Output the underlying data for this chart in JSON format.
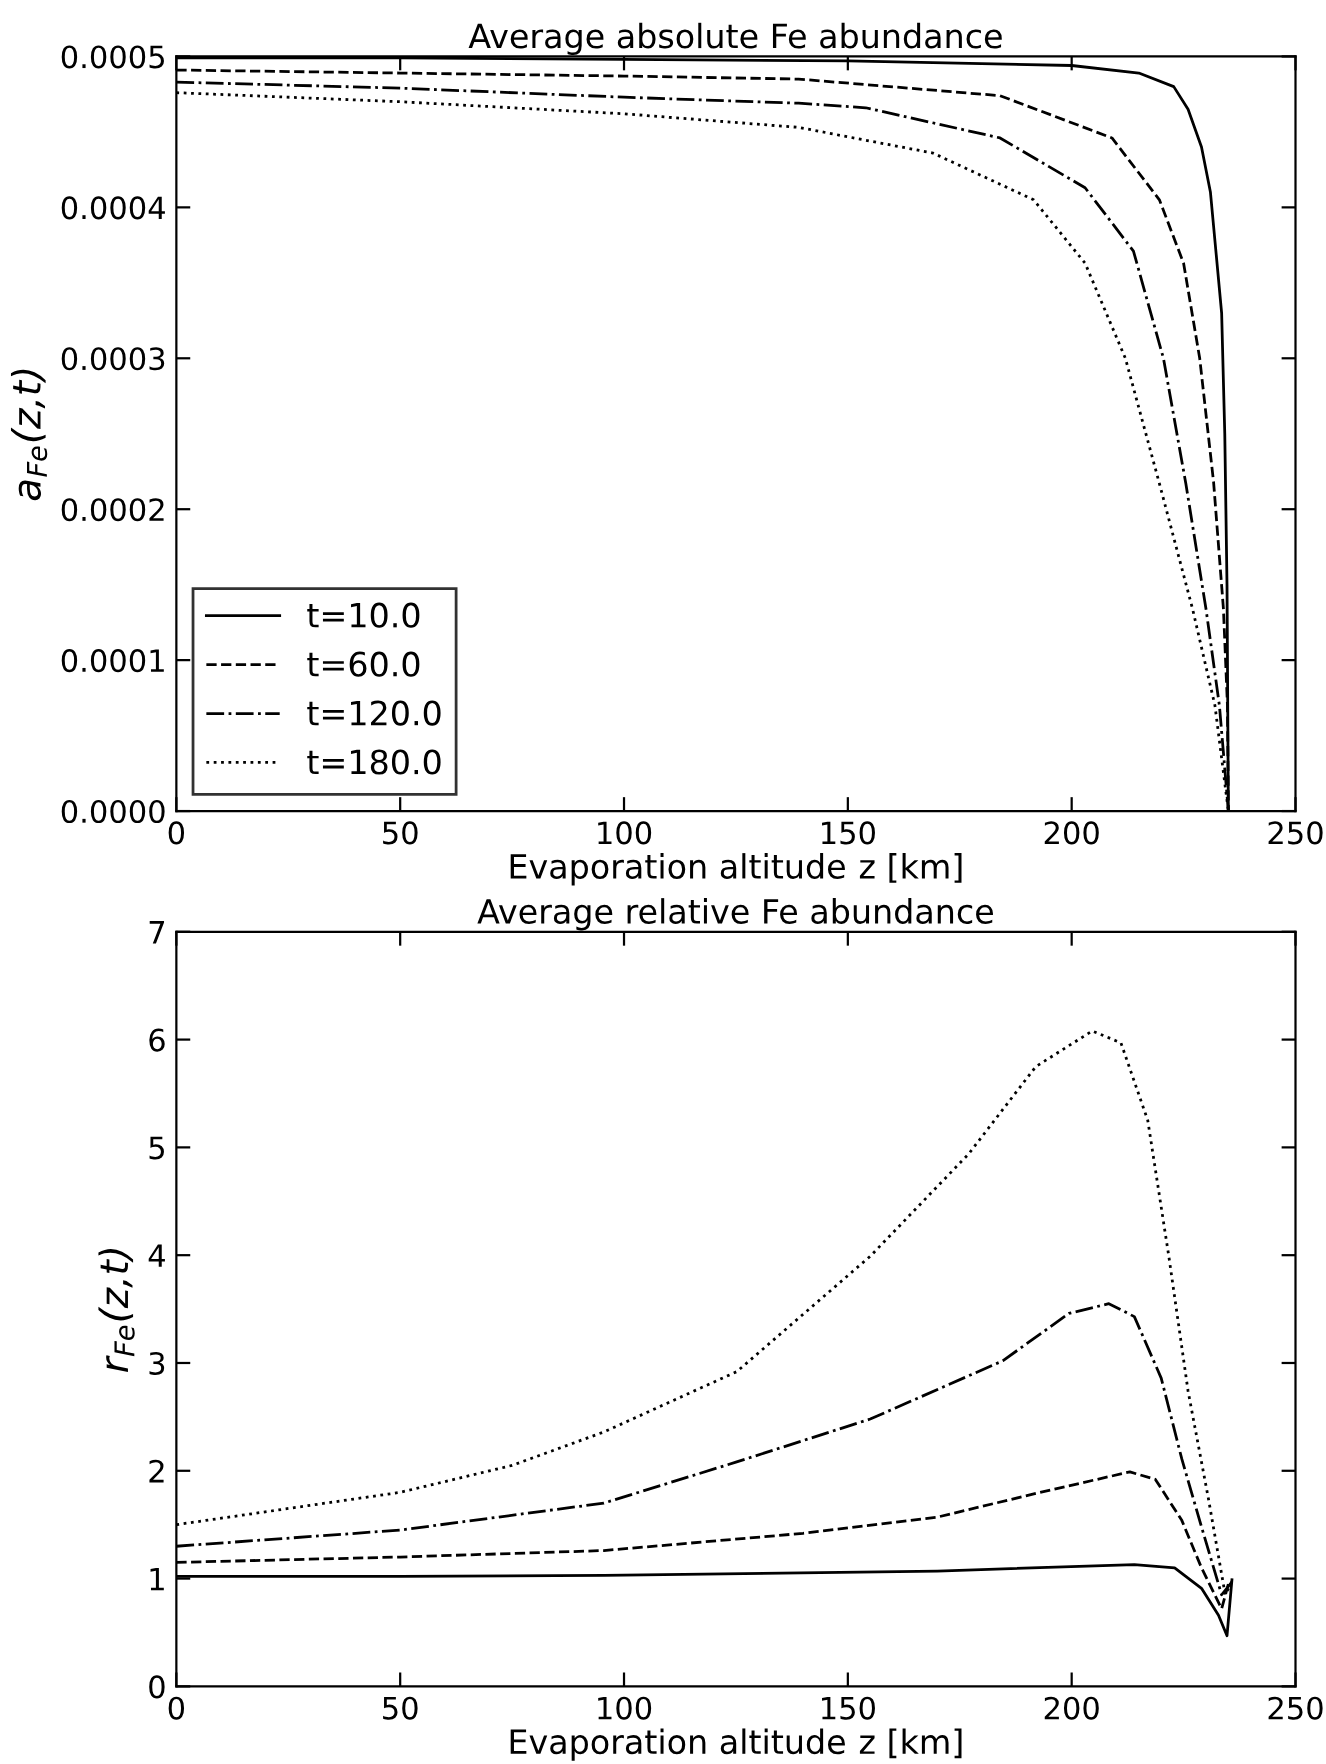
{
  "chart_data": [
    {
      "type": "line",
      "title": "Average absolute Fe abundance",
      "xlabel": "Evaporation altitude $_{}$z [km]",
      "ylabel": "a$_{Fe}$(z,t)",
      "xlim": [
        0,
        250
      ],
      "xticks": [
        0,
        50,
        100,
        150,
        200,
        250
      ],
      "ylim": [
        0,
        0.0005
      ],
      "yticks": [
        {
          "value": 0,
          "label": "0.0000"
        },
        {
          "value": 0.0001,
          "label": "0.0001"
        },
        {
          "value": 0.0002,
          "label": "0.0002"
        },
        {
          "value": 0.0003,
          "label": "0.0003"
        },
        {
          "value": 0.0004,
          "label": "0.0004"
        },
        {
          "value": 0.0005,
          "label": "0.0005"
        }
      ],
      "grid": false,
      "legend": "bottom left",
      "marker": "none",
      "series": [
        {
          "name": "t=10.0",
          "color": "#000000",
          "line_style": "solid",
          "x": [
            0,
            50,
            100,
            150,
            200,
            215,
            222.8,
            226,
            229,
            231,
            233.5,
            234.2,
            234.7,
            235
          ],
          "values": [
            0.000499,
            0.000499,
            0.000498,
            0.000497,
            0.000494,
            0.000489,
            0.00048,
            0.000465,
            0.00044,
            0.00041,
            0.00033,
            0.00025,
            0.00015,
            0
          ]
        },
        {
          "name": "t=60.0",
          "color": "#000000",
          "line_style": "dashed",
          "x": [
            0,
            50,
            100,
            139,
            184,
            209,
            219.6,
            225,
            228.6,
            231.7,
            233.9,
            234.8,
            235
          ],
          "values": [
            0.000491,
            0.000489,
            0.000487,
            0.000485,
            0.000474,
            0.000446,
            0.000405,
            0.000363,
            0.0003,
            0.000218,
            0.000134,
            7e-05,
            0
          ]
        },
        {
          "name": "t=120.0",
          "color": "#000000",
          "line_style": "dashdot",
          "x": [
            0,
            50,
            100,
            139,
            154,
            184,
            203,
            213.8,
            220.5,
            225.5,
            230,
            233,
            235
          ],
          "values": [
            0.000483,
            0.000479,
            0.000473,
            0.000469,
            0.000466,
            0.000446,
            0.000413,
            0.000371,
            0.0003,
            0.000217,
            0.000134,
            7e-05,
            0
          ]
        },
        {
          "name": "t=180.0",
          "color": "#000000",
          "line_style": "dotted",
          "x": [
            0,
            50,
            100,
            139,
            169,
            191.5,
            203,
            212,
            219.6,
            227,
            232,
            235
          ],
          "values": [
            0.000476,
            0.00047,
            0.000462,
            0.000453,
            0.000436,
            0.000405,
            0.000363,
            0.0003,
            0.000217,
            0.000134,
            7e-05,
            0
          ]
        }
      ]
    },
    {
      "type": "line",
      "title": "Average relative Fe abundance",
      "xlabel": "Evaporation altitude $_{}$z [km]",
      "ylabel": "r$_{Fe}$(z,t)",
      "xlim": [
        0,
        250
      ],
      "xticks": [
        0,
        50,
        100,
        150,
        200,
        250
      ],
      "ylim": [
        0,
        7
      ],
      "yticks": [
        0,
        1,
        2,
        3,
        4,
        5,
        6,
        7
      ],
      "grid": false,
      "marker": "none",
      "series": [
        {
          "color": "#000000",
          "line_style": "solid",
          "x": [
            0,
            50,
            95.5,
            170,
            214,
            223,
            229,
            232.8,
            234.7,
            235.8
          ],
          "values": [
            1.02,
            1.02,
            1.03,
            1.07,
            1.13,
            1.1,
            0.91,
            0.66,
            0.47,
            0.99
          ]
        },
        {
          "color": "#000000",
          "line_style": "dashed",
          "x": [
            0,
            50,
            95.5,
            140,
            170,
            192,
            213,
            218.7,
            224.6,
            229,
            233.5,
            235
          ],
          "values": [
            1.15,
            1.2,
            1.26,
            1.42,
            1.57,
            1.79,
            1.99,
            1.92,
            1.54,
            1.1,
            0.72,
            0.95
          ]
        },
        {
          "color": "#000000",
          "line_style": "dashdot",
          "x": [
            0,
            50,
            95.5,
            125,
            155,
            184.6,
            199.4,
            208.3,
            214,
            220,
            224.6,
            229,
            233.5,
            235.8
          ],
          "values": [
            1.3,
            1.45,
            1.7,
            2.08,
            2.48,
            3.02,
            3.46,
            3.55,
            3.43,
            2.86,
            2.11,
            1.48,
            0.85,
            0.97
          ]
        },
        {
          "color": "#000000",
          "line_style": "dotted",
          "x": [
            0,
            50,
            75,
            95.5,
            125.2,
            155,
            177,
            192,
            204.6,
            211,
            217,
            221.7,
            226,
            230.6,
            234.3,
            235.8
          ],
          "values": [
            1.5,
            1.8,
            2.05,
            2.36,
            2.92,
            3.99,
            4.94,
            5.75,
            6.08,
            5.97,
            5.25,
            3.99,
            2.74,
            1.73,
            0.85,
            0.97
          ]
        }
      ]
    }
  ]
}
